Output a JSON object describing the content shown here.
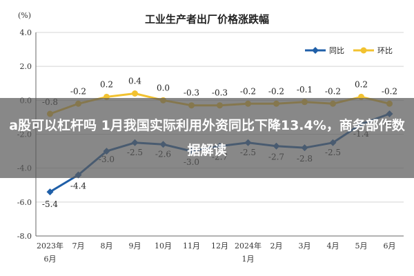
{
  "chart_data": {
    "type": "line",
    "title": "工业生产者出厂价格涨跌幅",
    "unit_label": "(%)",
    "categories": [
      "2023年6月",
      "7月",
      "8月",
      "9月",
      "10月",
      "11月",
      "12月",
      "2024年1月",
      "2月",
      "3月",
      "4月",
      "5月",
      "6月"
    ],
    "category_lines": [
      [
        "2023年",
        "6月"
      ],
      [
        "7月"
      ],
      [
        "8月"
      ],
      [
        "9月"
      ],
      [
        "10月"
      ],
      [
        "11月"
      ],
      [
        "12月"
      ],
      [
        "2024年",
        "1月"
      ],
      [
        "2月"
      ],
      [
        "3月"
      ],
      [
        "4月"
      ],
      [
        "5月"
      ],
      [
        "6月"
      ]
    ],
    "y_ticks": [
      "4.0",
      "2.0",
      "0.0",
      "-2.0",
      "-4.0",
      "-6.0",
      "-8.0"
    ],
    "ylim": [
      -8,
      4
    ],
    "legend_position": "top-right",
    "series": [
      {
        "name": "同比",
        "color": "#1f5fa8",
        "values": [
          -5.4,
          -4.4,
          -3.0,
          -2.5,
          -2.6,
          -3.0,
          -2.7,
          -2.5,
          -2.7,
          -2.8,
          -2.5,
          -1.4,
          -0.8
        ],
        "labels": [
          "-5.4",
          "-4.4",
          "-3.0",
          "-2.5",
          "-2.6",
          "-3.0",
          "-2.7",
          "-2.5",
          "-2.7",
          "-2.8",
          "-2.5",
          "-1.4",
          "-0.8"
        ]
      },
      {
        "name": "环比",
        "color": "#f2c230",
        "values": [
          -0.8,
          -0.2,
          0.2,
          0.4,
          0.0,
          -0.3,
          -0.3,
          -0.2,
          -0.2,
          -0.1,
          -0.2,
          0.2,
          -0.2
        ],
        "labels": [
          "-0.8",
          "-0.2",
          "0.2",
          "0.4",
          "0.0",
          "-0.3",
          "-0.3",
          "-0.2",
          "-0.2",
          "-0.1",
          "-0.2",
          "0.2",
          "-0.2"
        ]
      }
    ]
  },
  "overlay": {
    "headline": "a股可以杠杆吗 1月我国实际利用外资同比下降13.4%，商务部作数据解读"
  }
}
